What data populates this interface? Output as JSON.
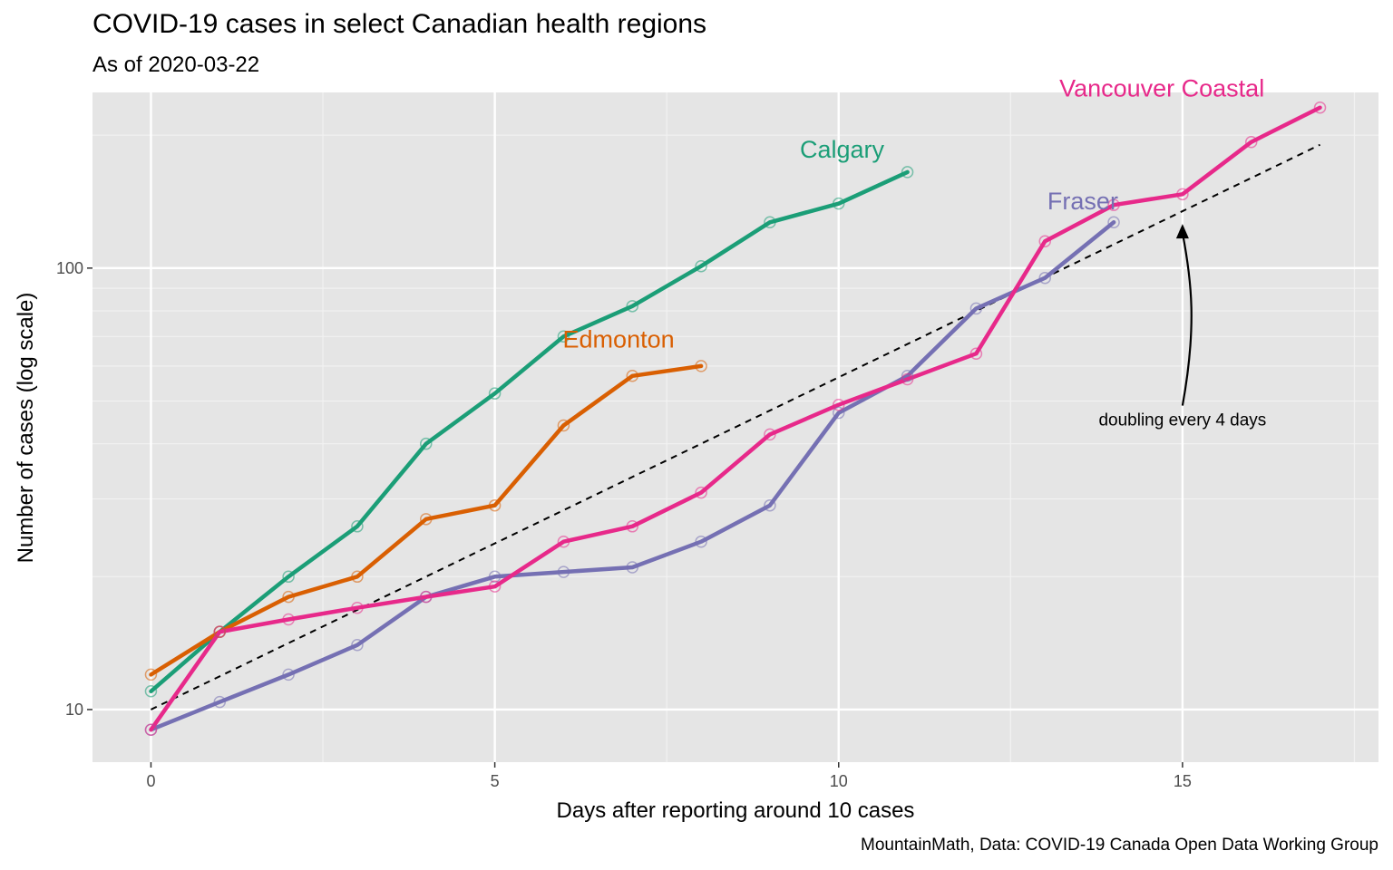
{
  "title": "COVID-19 cases in select Canadian health regions",
  "subtitle": "As of 2020-03-22",
  "caption": "MountainMath, Data: COVID-19 Canada Open Data Working Group",
  "chart_data": {
    "type": "line",
    "xlabel": "Days after reporting around 10 cases",
    "ylabel": "Number of cases (log scale)",
    "y_scale": "log",
    "xlim": [
      -0.85,
      17.85
    ],
    "ylim": [
      7.6,
      250
    ],
    "x_ticks": [
      0,
      5,
      10,
      15
    ],
    "x_tick_labels": [
      "0",
      "5",
      "10",
      "15"
    ],
    "y_ticks": [
      10,
      100
    ],
    "y_tick_labels": [
      "10",
      "100"
    ],
    "grid": true,
    "legend": "none",
    "series": [
      {
        "name": "Calgary",
        "color": "#1b9e77",
        "x": [
          0,
          1,
          2,
          3,
          4,
          5,
          6,
          7,
          8,
          9,
          10,
          11
        ],
        "y": [
          11,
          15,
          20,
          26,
          40,
          52,
          70,
          82,
          101,
          127,
          140,
          165
        ]
      },
      {
        "name": "Edmonton",
        "color": "#d95f02",
        "x": [
          0,
          1,
          2,
          3,
          4,
          5,
          6,
          7,
          8
        ],
        "y": [
          12,
          15,
          18,
          20,
          27,
          29,
          44,
          57,
          60
        ]
      },
      {
        "name": "Fraser",
        "color": "#7570b3",
        "x": [
          0,
          1,
          2,
          3,
          4,
          5,
          6,
          7,
          8,
          9,
          10,
          11,
          12,
          13,
          14
        ],
        "y": [
          9,
          10.4,
          12,
          14,
          18,
          20,
          20.5,
          21,
          24,
          29,
          47,
          57,
          81,
          95,
          127
        ]
      },
      {
        "name": "Vancouver Coastal",
        "color": "#e7298a",
        "x": [
          0,
          1,
          2,
          3,
          4,
          5,
          6,
          7,
          8,
          9,
          10,
          11,
          12,
          13,
          14,
          15,
          16,
          17
        ],
        "y": [
          9,
          15,
          16,
          17,
          18,
          19,
          24,
          26,
          31,
          42,
          49,
          56,
          64,
          115,
          139,
          147,
          193,
          231
        ]
      }
    ],
    "reference_line": {
      "name": "doubling every 4 days",
      "x": [
        0,
        17
      ],
      "y": [
        10,
        190.3
      ]
    },
    "annotations": [
      {
        "text": "Calgary",
        "color": "#1b9e77"
      },
      {
        "text": "Edmonton",
        "color": "#d95f02"
      },
      {
        "text": "Fraser",
        "color": "#7570b3"
      },
      {
        "text": "Vancouver Coastal",
        "color": "#e7298a"
      },
      {
        "text": "doubling every 4 days",
        "color": "#000000"
      }
    ]
  }
}
